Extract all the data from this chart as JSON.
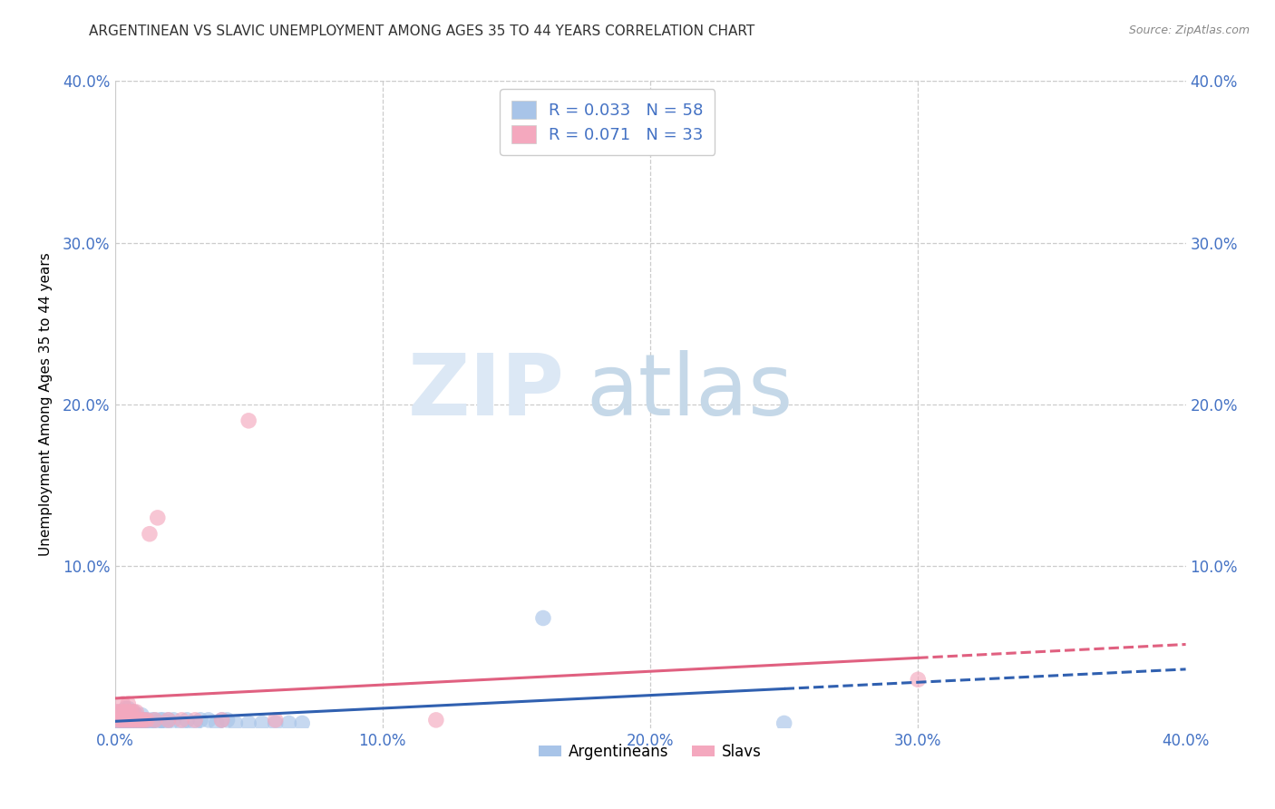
{
  "title": "ARGENTINEAN VS SLAVIC UNEMPLOYMENT AMONG AGES 35 TO 44 YEARS CORRELATION CHART",
  "source": "Source: ZipAtlas.com",
  "ylabel": "Unemployment Among Ages 35 to 44 years",
  "xlim": [
    0.0,
    0.4
  ],
  "ylim": [
    0.0,
    0.4
  ],
  "xticks": [
    0.0,
    0.1,
    0.2,
    0.3,
    0.4
  ],
  "yticks": [
    0.0,
    0.1,
    0.2,
    0.3,
    0.4
  ],
  "xticklabels": [
    "0.0%",
    "10.0%",
    "20.0%",
    "30.0%",
    "40.0%"
  ],
  "yticklabels_left": [
    "",
    "10.0%",
    "20.0%",
    "30.0%",
    "40.0%"
  ],
  "yticklabels_right": [
    "",
    "10.0%",
    "20.0%",
    "30.0%",
    "40.0%"
  ],
  "legend_labels": [
    "Argentineans",
    "Slavs"
  ],
  "argentinean_color": "#a8c4e8",
  "slavic_color": "#f4a8be",
  "argentinean_R": 0.033,
  "argentinean_N": 58,
  "slavic_R": 0.071,
  "slavic_N": 33,
  "argentinean_line_color": "#3060b0",
  "slavic_line_color": "#e06080",
  "watermark_zip": "ZIP",
  "watermark_atlas": "atlas",
  "argentinean_x": [
    0.001,
    0.001,
    0.002,
    0.002,
    0.002,
    0.003,
    0.003,
    0.003,
    0.004,
    0.004,
    0.004,
    0.004,
    0.005,
    0.005,
    0.005,
    0.005,
    0.006,
    0.006,
    0.006,
    0.007,
    0.007,
    0.007,
    0.008,
    0.008,
    0.008,
    0.009,
    0.009,
    0.01,
    0.01,
    0.01,
    0.011,
    0.011,
    0.012,
    0.013,
    0.014,
    0.015,
    0.016,
    0.017,
    0.018,
    0.019,
    0.02,
    0.022,
    0.025,
    0.027,
    0.03,
    0.032,
    0.035,
    0.038,
    0.04,
    0.042,
    0.045,
    0.05,
    0.055,
    0.06,
    0.065,
    0.07,
    0.16,
    0.25
  ],
  "argentinean_y": [
    0.005,
    0.01,
    0.003,
    0.005,
    0.008,
    0.003,
    0.005,
    0.01,
    0.003,
    0.005,
    0.008,
    0.012,
    0.003,
    0.005,
    0.008,
    0.012,
    0.003,
    0.005,
    0.008,
    0.003,
    0.005,
    0.01,
    0.003,
    0.005,
    0.008,
    0.003,
    0.005,
    0.003,
    0.005,
    0.008,
    0.003,
    0.005,
    0.005,
    0.003,
    0.005,
    0.005,
    0.003,
    0.005,
    0.005,
    0.003,
    0.005,
    0.005,
    0.003,
    0.005,
    0.003,
    0.005,
    0.005,
    0.003,
    0.005,
    0.005,
    0.003,
    0.003,
    0.003,
    0.003,
    0.003,
    0.003,
    0.068,
    0.003
  ],
  "slavic_x": [
    0.001,
    0.001,
    0.002,
    0.002,
    0.003,
    0.003,
    0.003,
    0.004,
    0.004,
    0.005,
    0.005,
    0.005,
    0.006,
    0.006,
    0.007,
    0.007,
    0.008,
    0.008,
    0.009,
    0.01,
    0.011,
    0.012,
    0.013,
    0.015,
    0.016,
    0.02,
    0.025,
    0.03,
    0.04,
    0.05,
    0.06,
    0.12,
    0.3
  ],
  "slavic_y": [
    0.005,
    0.01,
    0.005,
    0.01,
    0.005,
    0.01,
    0.015,
    0.005,
    0.01,
    0.005,
    0.01,
    0.015,
    0.005,
    0.01,
    0.005,
    0.01,
    0.005,
    0.01,
    0.005,
    0.005,
    0.005,
    0.005,
    0.12,
    0.005,
    0.13,
    0.005,
    0.005,
    0.005,
    0.005,
    0.19,
    0.005,
    0.005,
    0.03
  ]
}
